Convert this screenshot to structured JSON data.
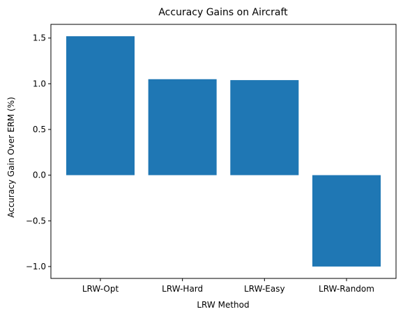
{
  "chart_data": {
    "type": "bar",
    "title": "Accuracy Gains on Aircraft",
    "xlabel": "LRW Method",
    "ylabel": "Accuracy Gain Over ERM (%)",
    "categories": [
      "LRW-Opt",
      "LRW-Hard",
      "LRW-Easy",
      "LRW-Random"
    ],
    "values": [
      1.52,
      1.05,
      1.04,
      -1.0
    ],
    "ylim": [
      -1.13,
      1.65
    ],
    "yticks": [
      -1.0,
      -0.5,
      0.0,
      0.5,
      1.0,
      1.5
    ],
    "ytick_labels": [
      "−1.0",
      "−0.5",
      "0.0",
      "0.5",
      "1.0",
      "1.5"
    ],
    "bar_color": "#1f77b4",
    "grid": false,
    "legend": "none"
  }
}
